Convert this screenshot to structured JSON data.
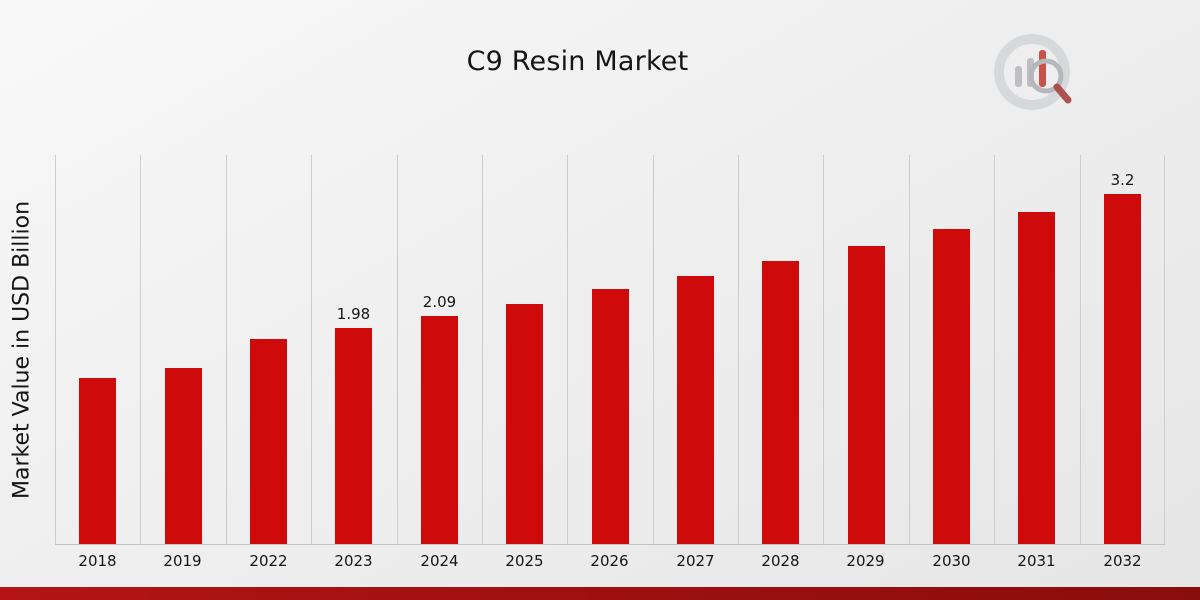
{
  "page": {
    "title": "C9 Resin Market",
    "logo_icon": "chart-bars-magnifier-logo"
  },
  "chart_data": {
    "type": "bar",
    "title": "C9 Resin Market",
    "xlabel": "",
    "ylabel": "Market Value in USD Billion",
    "categories": [
      "2018",
      "2019",
      "2022",
      "2023",
      "2024",
      "2025",
      "2026",
      "2027",
      "2028",
      "2029",
      "2030",
      "2031",
      "2032"
    ],
    "values": [
      1.52,
      1.61,
      1.88,
      1.98,
      2.09,
      2.2,
      2.33,
      2.45,
      2.59,
      2.73,
      2.88,
      3.04,
      3.2
    ],
    "bar_labels": [
      "",
      "",
      "",
      "1.98",
      "2.09",
      "",
      "",
      "",
      "",
      "",
      "",
      "",
      "3.2"
    ],
    "ylim": [
      0,
      3.57
    ],
    "grid": "vertical",
    "legend_position": "none",
    "bar_color": "#cf0a0a"
  },
  "footer": {
    "band_colors": [
      "#b41414",
      "#9c1010",
      "#8a0d0d"
    ]
  }
}
